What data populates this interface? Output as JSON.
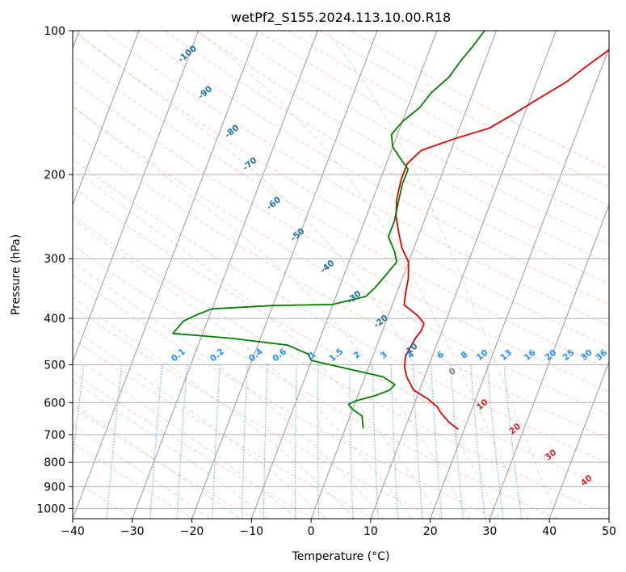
{
  "chart_data": {
    "type": "line",
    "title": "wetPf2_S155.2024.113.10.00.R18",
    "xlabel": "Temperature (°C)",
    "ylabel": "Pressure (hPa)",
    "xlim": [
      -40,
      50
    ],
    "ylim": [
      1050,
      100
    ],
    "y_scale": "log",
    "grid": true,
    "x_ticks": [
      -40,
      -30,
      -20,
      -10,
      0,
      10,
      20,
      30,
      40,
      50
    ],
    "y_ticks": [
      100,
      200,
      300,
      400,
      500,
      600,
      700,
      800,
      900,
      1000
    ],
    "series": [
      {
        "color": "#e00000",
        "points": [
          [
            19,
            683
          ],
          [
            17,
            660
          ],
          [
            15,
            630
          ],
          [
            14,
            612
          ],
          [
            12,
            590
          ],
          [
            9,
            565
          ],
          [
            7,
            530
          ],
          [
            6,
            505
          ],
          [
            5.5,
            480
          ],
          [
            5.8,
            455
          ],
          [
            6,
            440
          ],
          [
            6.5,
            425
          ],
          [
            6.5,
            410
          ],
          [
            5,
            395
          ],
          [
            2,
            375
          ],
          [
            1.5,
            355
          ],
          [
            1,
            330
          ],
          [
            0,
            305
          ],
          [
            -2,
            285
          ],
          [
            -3.5,
            265
          ],
          [
            -5,
            245
          ],
          [
            -6,
            225
          ],
          [
            -6.5,
            205
          ],
          [
            -6.5,
            190
          ],
          [
            -5,
            178
          ],
          [
            0,
            168
          ],
          [
            5,
            160
          ],
          [
            8,
            150
          ],
          [
            11,
            140
          ],
          [
            15,
            128
          ],
          [
            17,
            120
          ],
          [
            20,
            110
          ],
          [
            22,
            100
          ]
        ]
      },
      {
        "color": "#008000",
        "points": [
          [
            3,
            680
          ],
          [
            2.5,
            660
          ],
          [
            2,
            640
          ],
          [
            0,
            620
          ],
          [
            -1,
            605
          ],
          [
            0,
            595
          ],
          [
            3,
            580
          ],
          [
            5,
            565
          ],
          [
            5.5,
            550
          ],
          [
            3,
            530
          ],
          [
            -5,
            505
          ],
          [
            -10,
            490
          ],
          [
            -11,
            475
          ],
          [
            -15,
            455
          ],
          [
            -25,
            440
          ],
          [
            -35,
            430
          ],
          [
            -34,
            405
          ],
          [
            -32,
            392
          ],
          [
            -30,
            382
          ],
          [
            -20,
            376
          ],
          [
            -10,
            374
          ],
          [
            -5,
            360
          ],
          [
            -4,
            345
          ],
          [
            -3,
            325
          ],
          [
            -2,
            305
          ],
          [
            -3,
            290
          ],
          [
            -5,
            270
          ],
          [
            -5,
            250
          ],
          [
            -5.5,
            230
          ],
          [
            -6,
            210
          ],
          [
            -6,
            195
          ],
          [
            -8,
            185
          ],
          [
            -10,
            175
          ],
          [
            -11,
            165
          ],
          [
            -10,
            155
          ],
          [
            -8,
            145
          ],
          [
            -7,
            135
          ],
          [
            -5,
            125
          ],
          [
            -4,
            115
          ],
          [
            -3,
            108
          ],
          [
            -2,
            100
          ]
        ]
      }
    ],
    "dry_adiabats": {
      "color": "#ff8c69",
      "labels": [
        {
          "text": "0",
          "color": "#808080",
          "x": 24,
          "p": 522
        },
        {
          "text": "10",
          "color": "#d62728",
          "x": 29,
          "p": 612
        },
        {
          "text": "20",
          "color": "#d62728",
          "x": 34.5,
          "p": 688
        },
        {
          "text": "30",
          "color": "#d62728",
          "x": 40.5,
          "p": 780
        },
        {
          "text": "40",
          "color": "#d62728",
          "x": 46.5,
          "p": 882
        }
      ]
    },
    "moist_adiabats": {
      "color": "#6ab86a",
      "labels": [
        {
          "text": "-100",
          "color": "#1f6fa8",
          "x": -20.5,
          "p": 113
        },
        {
          "text": "-90",
          "color": "#1f6fa8",
          "x": -17.5,
          "p": 136
        },
        {
          "text": "-80",
          "color": "#1f6fa8",
          "x": -13,
          "p": 164
        },
        {
          "text": "-70",
          "color": "#1f6fa8",
          "x": -10,
          "p": 192
        },
        {
          "text": "-60",
          "color": "#1f6fa8",
          "x": -6,
          "p": 232
        },
        {
          "text": "-50",
          "color": "#1f6fa8",
          "x": -2,
          "p": 270
        },
        {
          "text": "-40",
          "color": "#1f6fa8",
          "x": 3,
          "p": 315
        },
        {
          "text": "-30",
          "color": "#1f6fa8",
          "x": 7.5,
          "p": 365
        },
        {
          "text": "-20",
          "color": "#1f6fa8",
          "x": 12,
          "p": 410
        },
        {
          "text": "-10",
          "color": "#1f6fa8",
          "x": 17,
          "p": 470
        }
      ]
    },
    "mixing_ratio": {
      "color": "#1e90ff",
      "labels": [
        "0.1",
        "0.2",
        "0.4",
        "0.6",
        "1",
        "1.5",
        "2",
        "3",
        "4",
        "6",
        "8",
        "10",
        "13",
        "16",
        "20",
        "25",
        "30",
        "36"
      ],
      "label_x": [
        -22,
        -15.5,
        -9,
        -5,
        0.5,
        4.5,
        8,
        12.5,
        17,
        22,
        26,
        29,
        33,
        37,
        40.5,
        43.5,
        46.5,
        49
      ]
    }
  }
}
